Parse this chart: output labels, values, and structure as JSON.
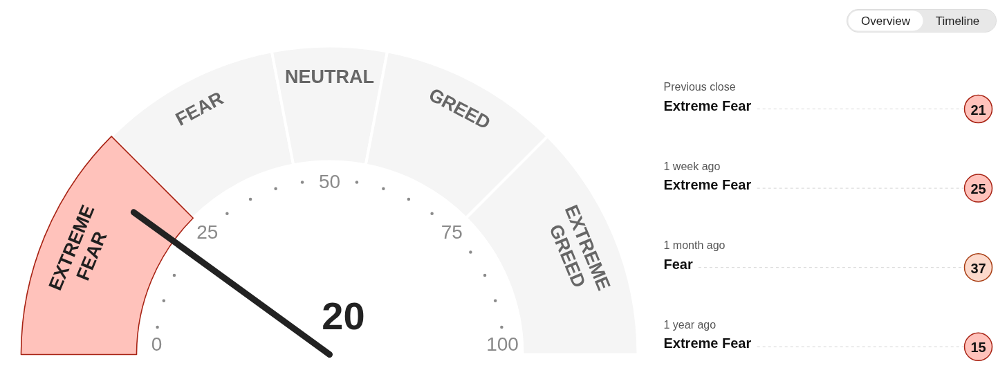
{
  "chart_data": [
    {
      "type": "donut",
      "categories": [
        "EXTREME FEAR",
        "FEAR",
        "NEUTRAL",
        "GREED",
        "EXTREME GREED"
      ],
      "values": [
        25,
        19,
        12,
        19,
        25
      ],
      "colors": [
        "#ffc2bb",
        "#f5f5f5",
        "#f5f5f5",
        "#f5f5f5",
        "#f5f5f5"
      ],
      "needle": "EXTREME FEAR",
      "annotations": [
        "0",
        "25",
        "50",
        "75",
        "100",
        "20"
      ]
    },
    {
      "type": "other",
      "annotations": [
        "Overview",
        "Timeline"
      ]
    },
    {
      "type": "other",
      "annotations": [
        "Previous close",
        "Extreme Fear",
        "21",
        "1 week ago",
        "Extreme Fear",
        "25",
        "1 month ago",
        "Fear",
        "37",
        "1 year ago",
        "Extreme Fear",
        "15"
      ],
      "colors": [
        "#ffc2bb",
        "#ffc2bb",
        "#fcd9cb",
        "#ffc2bb"
      ]
    }
  ]
}
